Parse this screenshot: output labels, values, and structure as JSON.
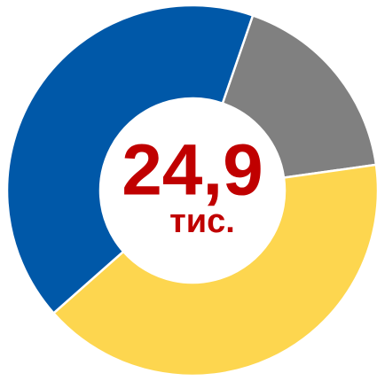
{
  "chart_data": {
    "type": "donut",
    "title": "24,9",
    "subtitle": "тис.",
    "categories": [
      null,
      null,
      null
    ],
    "values": [
      17.5,
      40.7,
      41.8
    ],
    "colors": [
      "#808080",
      "#fdd64f",
      "#0058a8"
    ]
  }
}
